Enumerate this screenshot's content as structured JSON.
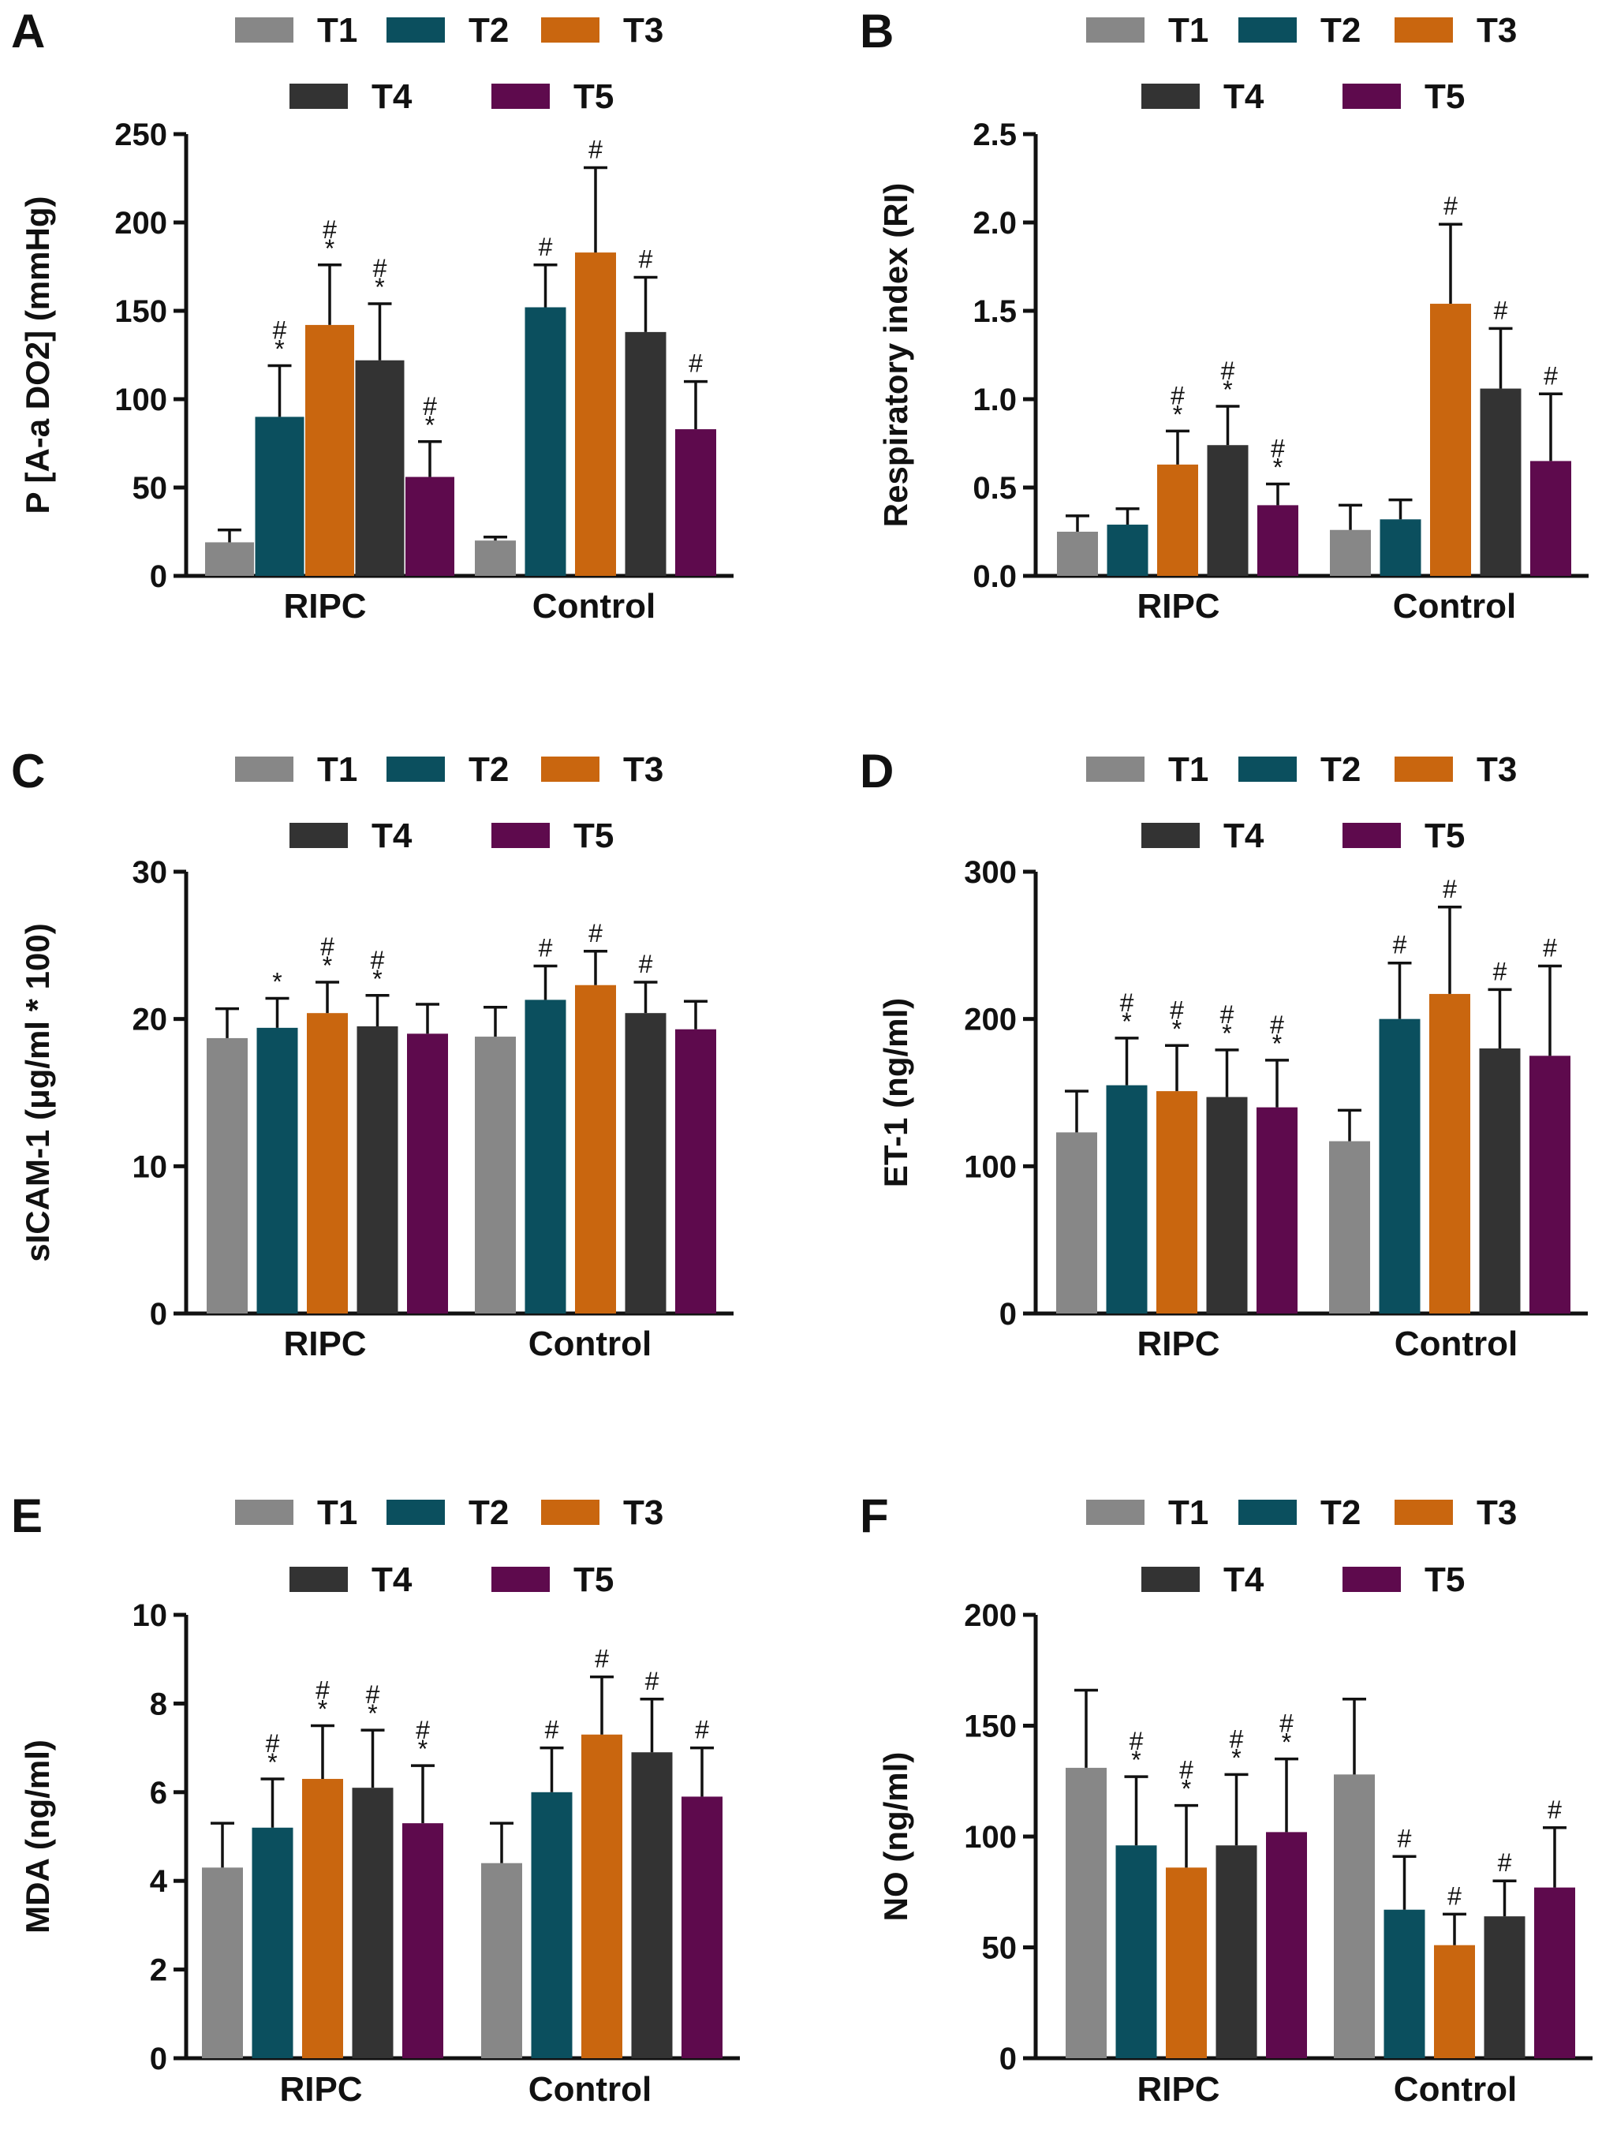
{
  "legend": {
    "labels": [
      "T1",
      "T2",
      "T3",
      "T4",
      "T5"
    ],
    "colors": [
      "#878787",
      "#0b4f5e",
      "#c9660f",
      "#333333",
      "#5e0a4d"
    ]
  },
  "chart_data": [
    {
      "panel": "A",
      "type": "bar",
      "ylabel": "P [A-a DO2] (mmHg)",
      "ylim": [
        0,
        250
      ],
      "yticks": [
        "0",
        "50",
        "100",
        "150",
        "200",
        "250"
      ],
      "categories": [
        "RIPC",
        "Control"
      ],
      "series": [
        {
          "name": "T1",
          "values": [
            19,
            20
          ],
          "errors": [
            7,
            2
          ],
          "marks": [
            "",
            ""
          ]
        },
        {
          "name": "T2",
          "values": [
            90,
            152
          ],
          "errors": [
            29,
            24
          ],
          "marks": [
            "*#",
            "#"
          ]
        },
        {
          "name": "T3",
          "values": [
            142,
            183
          ],
          "errors": [
            34,
            48
          ],
          "marks": [
            "*#",
            "#"
          ]
        },
        {
          "name": "T4",
          "values": [
            122,
            138
          ],
          "errors": [
            32,
            31
          ],
          "marks": [
            "*#",
            "#"
          ]
        },
        {
          "name": "T5",
          "values": [
            56,
            83
          ],
          "errors": [
            20,
            27
          ],
          "marks": [
            "*#",
            "#"
          ]
        }
      ]
    },
    {
      "panel": "B",
      "type": "bar",
      "ylabel": "Respiratory index (RI)",
      "ylim": [
        0,
        2.5
      ],
      "yticks": [
        "0.0",
        "0.5",
        "1.0",
        "1.5",
        "2.0",
        "2.5"
      ],
      "categories": [
        "RIPC",
        "Control"
      ],
      "series": [
        {
          "name": "T1",
          "values": [
            0.25,
            0.26
          ],
          "errors": [
            0.09,
            0.14
          ],
          "marks": [
            "",
            ""
          ]
        },
        {
          "name": "T2",
          "values": [
            0.29,
            0.32
          ],
          "errors": [
            0.09,
            0.11
          ],
          "marks": [
            "",
            ""
          ]
        },
        {
          "name": "T3",
          "values": [
            0.63,
            1.54
          ],
          "errors": [
            0.19,
            0.45
          ],
          "marks": [
            "*#",
            "#"
          ]
        },
        {
          "name": "T4",
          "values": [
            0.74,
            1.06
          ],
          "errors": [
            0.22,
            0.34
          ],
          "marks": [
            "*#",
            "#"
          ]
        },
        {
          "name": "T5",
          "values": [
            0.4,
            0.65
          ],
          "errors": [
            0.12,
            0.38
          ],
          "marks": [
            "*#",
            "#"
          ]
        }
      ]
    },
    {
      "panel": "C",
      "type": "bar",
      "ylabel": "sICAM-1 (μg/ml * 100)",
      "ylim": [
        0,
        30
      ],
      "yticks": [
        "0",
        "10",
        "20",
        "30"
      ],
      "categories": [
        "RIPC",
        "Control"
      ],
      "series": [
        {
          "name": "T1",
          "values": [
            18.7,
            18.8
          ],
          "errors": [
            2.0,
            2.0
          ],
          "marks": [
            "",
            ""
          ]
        },
        {
          "name": "T2",
          "values": [
            19.4,
            21.3
          ],
          "errors": [
            2.0,
            2.3
          ],
          "marks": [
            "*",
            "#"
          ]
        },
        {
          "name": "T3",
          "values": [
            20.4,
            22.3
          ],
          "errors": [
            2.1,
            2.3
          ],
          "marks": [
            "*#",
            "#"
          ]
        },
        {
          "name": "T4",
          "values": [
            19.5,
            20.4
          ],
          "errors": [
            2.1,
            2.1
          ],
          "marks": [
            "*#",
            "#"
          ]
        },
        {
          "name": "T5",
          "values": [
            19.0,
            19.3
          ],
          "errors": [
            2.0,
            1.9
          ],
          "marks": [
            "",
            ""
          ]
        }
      ]
    },
    {
      "panel": "D",
      "type": "bar",
      "ylabel": "ET-1 (ng/ml)",
      "ylim": [
        0,
        300
      ],
      "yticks": [
        "0",
        "100",
        "200",
        "300"
      ],
      "categories": [
        "RIPC",
        "Control"
      ],
      "series": [
        {
          "name": "T1",
          "values": [
            123,
            117
          ],
          "errors": [
            28,
            21
          ],
          "marks": [
            "",
            ""
          ]
        },
        {
          "name": "T2",
          "values": [
            155,
            200
          ],
          "errors": [
            32,
            38
          ],
          "marks": [
            "*#",
            "#"
          ]
        },
        {
          "name": "T3",
          "values": [
            151,
            217
          ],
          "errors": [
            31,
            59
          ],
          "marks": [
            "*#",
            "#"
          ]
        },
        {
          "name": "T4",
          "values": [
            147,
            180
          ],
          "errors": [
            32,
            40
          ],
          "marks": [
            "*#",
            "#"
          ]
        },
        {
          "name": "T5",
          "values": [
            140,
            175
          ],
          "errors": [
            32,
            61
          ],
          "marks": [
            "*#",
            "#"
          ]
        }
      ]
    },
    {
      "panel": "E",
      "type": "bar",
      "ylabel": "MDA (ng/ml)",
      "ylim": [
        0,
        10
      ],
      "yticks": [
        "0",
        "2",
        "4",
        "6",
        "8",
        "10"
      ],
      "categories": [
        "RIPC",
        "Control"
      ],
      "series": [
        {
          "name": "T1",
          "values": [
            4.3,
            4.4
          ],
          "errors": [
            1.0,
            0.9
          ],
          "marks": [
            "",
            ""
          ]
        },
        {
          "name": "T2",
          "values": [
            5.2,
            6.0
          ],
          "errors": [
            1.1,
            1.0
          ],
          "marks": [
            "*#",
            "#"
          ]
        },
        {
          "name": "T3",
          "values": [
            6.3,
            7.3
          ],
          "errors": [
            1.2,
            1.3
          ],
          "marks": [
            "*#",
            "#"
          ]
        },
        {
          "name": "T4",
          "values": [
            6.1,
            6.9
          ],
          "errors": [
            1.3,
            1.2
          ],
          "marks": [
            "*#",
            "#"
          ]
        },
        {
          "name": "T5",
          "values": [
            5.3,
            5.9
          ],
          "errors": [
            1.3,
            1.1
          ],
          "marks": [
            "*#",
            "#"
          ]
        }
      ]
    },
    {
      "panel": "F",
      "type": "bar",
      "ylabel": "NO (ng/ml)",
      "ylim": [
        0,
        200
      ],
      "yticks": [
        "0",
        "50",
        "100",
        "150",
        "200"
      ],
      "categories": [
        "RIPC",
        "Control"
      ],
      "series": [
        {
          "name": "T1",
          "values": [
            131,
            128
          ],
          "errors": [
            35,
            34
          ],
          "marks": [
            "",
            ""
          ]
        },
        {
          "name": "T2",
          "values": [
            96,
            67
          ],
          "errors": [
            31,
            24
          ],
          "marks": [
            "*#",
            "#"
          ]
        },
        {
          "name": "T3",
          "values": [
            86,
            51
          ],
          "errors": [
            28,
            14
          ],
          "marks": [
            "*#",
            "#"
          ]
        },
        {
          "name": "T4",
          "values": [
            96,
            64
          ],
          "errors": [
            32,
            16
          ],
          "marks": [
            "*#",
            "#"
          ]
        },
        {
          "name": "T5",
          "values": [
            102,
            77
          ],
          "errors": [
            33,
            27
          ],
          "marks": [
            "*#",
            "#"
          ]
        }
      ]
    }
  ]
}
